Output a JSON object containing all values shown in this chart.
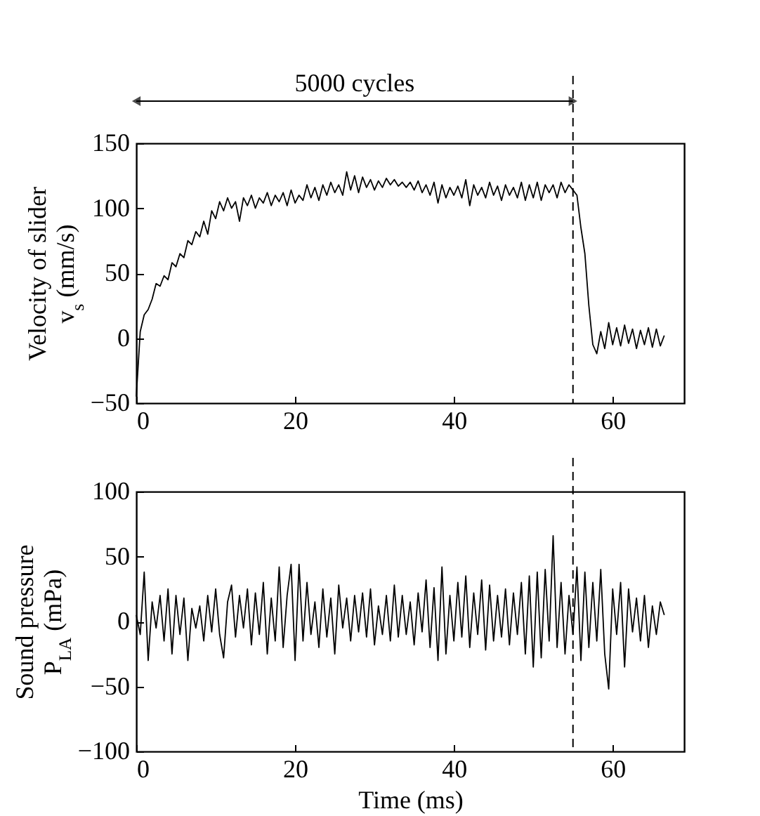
{
  "chart_data": [
    {
      "type": "line",
      "ylabel": "Velocity of slider\nv$_{s}$ (mm/s)",
      "annotations": [
        "5000 cycles"
      ],
      "xlim": [
        0,
        69
      ],
      "xticks": [
        0,
        20,
        40,
        60
      ],
      "ylim": [
        -50,
        150
      ],
      "yticks": [
        -50,
        0,
        50,
        100,
        150
      ],
      "grid": false,
      "ref_lines": [
        {
          "axis": "x",
          "value": 55,
          "line_style": "dashed"
        }
      ],
      "series": [
        {
          "color": "#000000",
          "x": [
            0,
            0.5,
            1,
            1.5,
            2,
            2.5,
            3,
            3.5,
            4,
            4.5,
            5,
            5.5,
            6,
            6.5,
            7,
            7.5,
            8,
            8.5,
            9,
            9.5,
            10,
            10.5,
            11,
            11.5,
            12,
            12.5,
            13,
            13.5,
            14,
            14.5,
            15,
            15.5,
            16,
            16.5,
            17,
            17.5,
            18,
            18.5,
            19,
            19.5,
            20,
            20.5,
            21,
            21.5,
            22,
            22.5,
            23,
            23.5,
            24,
            24.5,
            25,
            25.5,
            26,
            26.5,
            27,
            27.5,
            28,
            28.5,
            29,
            29.5,
            30,
            30.5,
            31,
            31.5,
            32,
            32.5,
            33,
            33.5,
            34,
            34.5,
            35,
            35.5,
            36,
            36.5,
            37,
            37.5,
            38,
            38.5,
            39,
            39.5,
            40,
            40.5,
            41,
            41.5,
            42,
            42.5,
            43,
            43.5,
            44,
            44.5,
            45,
            45.5,
            46,
            46.5,
            47,
            47.5,
            48,
            48.5,
            49,
            49.5,
            50,
            50.5,
            51,
            51.5,
            52,
            52.5,
            53,
            53.5,
            54,
            54.5,
            55,
            55.5,
            56,
            56.5,
            57,
            57.5,
            58,
            58.5,
            59,
            59.5,
            60,
            60.5,
            61,
            61.5,
            62,
            62.5,
            63,
            63.5,
            64,
            64.5,
            65,
            65.5,
            66,
            66.5
          ],
          "values": [
            -45,
            5,
            18,
            22,
            30,
            42,
            40,
            48,
            45,
            58,
            55,
            65,
            62,
            75,
            72,
            82,
            78,
            90,
            80,
            98,
            92,
            105,
            98,
            108,
            100,
            105,
            90,
            108,
            102,
            110,
            100,
            108,
            104,
            112,
            102,
            110,
            105,
            112,
            102,
            114,
            104,
            110,
            106,
            118,
            108,
            116,
            106,
            118,
            110,
            120,
            112,
            118,
            110,
            128,
            114,
            125,
            112,
            124,
            116,
            122,
            114,
            121,
            116,
            123,
            118,
            122,
            117,
            120,
            116,
            120,
            114,
            121,
            112,
            118,
            110,
            120,
            104,
            118,
            108,
            116,
            110,
            117,
            108,
            122,
            102,
            118,
            110,
            116,
            108,
            120,
            110,
            117,
            106,
            118,
            110,
            116,
            108,
            120,
            106,
            118,
            108,
            120,
            106,
            118,
            112,
            118,
            108,
            120,
            112,
            118,
            114,
            110,
            85,
            65,
            25,
            -5,
            -12,
            5,
            -8,
            12,
            -5,
            8,
            -6,
            10,
            -4,
            7,
            -8,
            6,
            -5,
            8,
            -7,
            7,
            -6,
            2
          ]
        }
      ]
    },
    {
      "type": "line",
      "xlabel": "Time (ms)",
      "ylabel": "Sound pressure\nP$_{LA}$ (mPa)",
      "xlim": [
        0,
        69
      ],
      "xticks": [
        0,
        20,
        40,
        60
      ],
      "ylim": [
        -100,
        100
      ],
      "yticks": [
        -100,
        -50,
        0,
        50,
        100
      ],
      "grid": false,
      "ref_lines": [
        {
          "axis": "x",
          "value": 55,
          "line_style": "dashed"
        }
      ],
      "series": [
        {
          "color": "#000000",
          "x": [
            0,
            0.5,
            1,
            1.5,
            2,
            2.5,
            3,
            3.5,
            4,
            4.5,
            5,
            5.5,
            6,
            6.5,
            7,
            7.5,
            8,
            8.5,
            9,
            9.5,
            10,
            10.5,
            11,
            11.5,
            12,
            12.5,
            13,
            13.5,
            14,
            14.5,
            15,
            15.5,
            16,
            16.5,
            17,
            17.5,
            18,
            18.5,
            19,
            19.5,
            20,
            20.5,
            21,
            21.5,
            22,
            22.5,
            23,
            23.5,
            24,
            24.5,
            25,
            25.5,
            26,
            26.5,
            27,
            27.5,
            28,
            28.5,
            29,
            29.5,
            30,
            30.5,
            31,
            31.5,
            32,
            32.5,
            33,
            33.5,
            34,
            34.5,
            35,
            35.5,
            36,
            36.5,
            37,
            37.5,
            38,
            38.5,
            39,
            39.5,
            40,
            40.5,
            41,
            41.5,
            42,
            42.5,
            43,
            43.5,
            44,
            44.5,
            45,
            45.5,
            46,
            46.5,
            47,
            47.5,
            48,
            48.5,
            49,
            49.5,
            50,
            50.5,
            51,
            51.5,
            52,
            52.5,
            53,
            53.5,
            54,
            54.5,
            55,
            55.5,
            56,
            56.5,
            57,
            57.5,
            58,
            58.5,
            59,
            59.5,
            60,
            60.5,
            61,
            61.5,
            62,
            62.5,
            63,
            63.5,
            64,
            64.5,
            65,
            65.5,
            66,
            66.5
          ],
          "values": [
            5,
            -10,
            38,
            -30,
            15,
            -5,
            20,
            -15,
            25,
            -25,
            20,
            -10,
            18,
            -30,
            10,
            -5,
            12,
            -15,
            20,
            -8,
            25,
            -10,
            -28,
            15,
            28,
            -12,
            20,
            -5,
            25,
            -18,
            22,
            -10,
            30,
            -25,
            18,
            -15,
            42,
            -20,
            20,
            44,
            -30,
            44,
            -15,
            30,
            -10,
            15,
            -20,
            25,
            -12,
            18,
            -25,
            28,
            -5,
            18,
            -15,
            20,
            -8,
            22,
            -12,
            25,
            -18,
            12,
            -10,
            20,
            -15,
            28,
            -12,
            20,
            -10,
            15,
            -18,
            22,
            -8,
            32,
            -20,
            26,
            -30,
            42,
            -25,
            20,
            -15,
            30,
            -12,
            35,
            -20,
            22,
            -10,
            32,
            -22,
            28,
            -15,
            20,
            -12,
            25,
            -18,
            22,
            -10,
            30,
            -25,
            35,
            -35,
            38,
            -28,
            40,
            -15,
            66,
            -20,
            30,
            -25,
            20,
            -10,
            42,
            -30,
            38,
            -20,
            30,
            -15,
            40,
            -25,
            -52,
            25,
            -10,
            30,
            -35,
            25,
            -8,
            18,
            -15,
            20,
            -20,
            12,
            -10,
            15,
            5
          ]
        }
      ]
    }
  ]
}
